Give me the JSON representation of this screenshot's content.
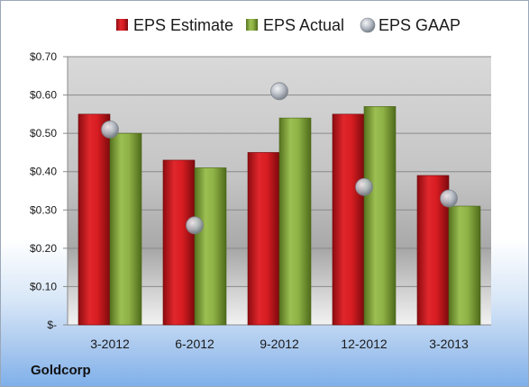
{
  "company": "Goldcorp",
  "colors": {
    "estimate": "#c8161d",
    "actual": "#7fa23a",
    "gaap": "#a8aeb8"
  },
  "chart_data": {
    "type": "bar",
    "categories": [
      "3-2012",
      "6-2012",
      "9-2012",
      "12-2012",
      "3-2013"
    ],
    "series": [
      {
        "name": "EPS Estimate",
        "kind": "bar",
        "values": [
          0.55,
          0.43,
          0.45,
          0.55,
          0.39
        ]
      },
      {
        "name": "EPS Actual",
        "kind": "bar",
        "values": [
          0.5,
          0.41,
          0.54,
          0.57,
          0.31
        ]
      },
      {
        "name": "EPS GAAP",
        "kind": "scatter",
        "values": [
          0.51,
          0.26,
          0.61,
          0.36,
          0.33
        ]
      }
    ],
    "ylim": [
      0,
      0.7
    ],
    "yticks": [
      0,
      0.1,
      0.2,
      0.3,
      0.4,
      0.5,
      0.6,
      0.7
    ],
    "ytick_labels": [
      "$-",
      "$0.10",
      "$0.20",
      "$0.30",
      "$0.40",
      "$0.50",
      "$0.60",
      "$0.70"
    ],
    "legend_position": "top",
    "grid": true
  }
}
